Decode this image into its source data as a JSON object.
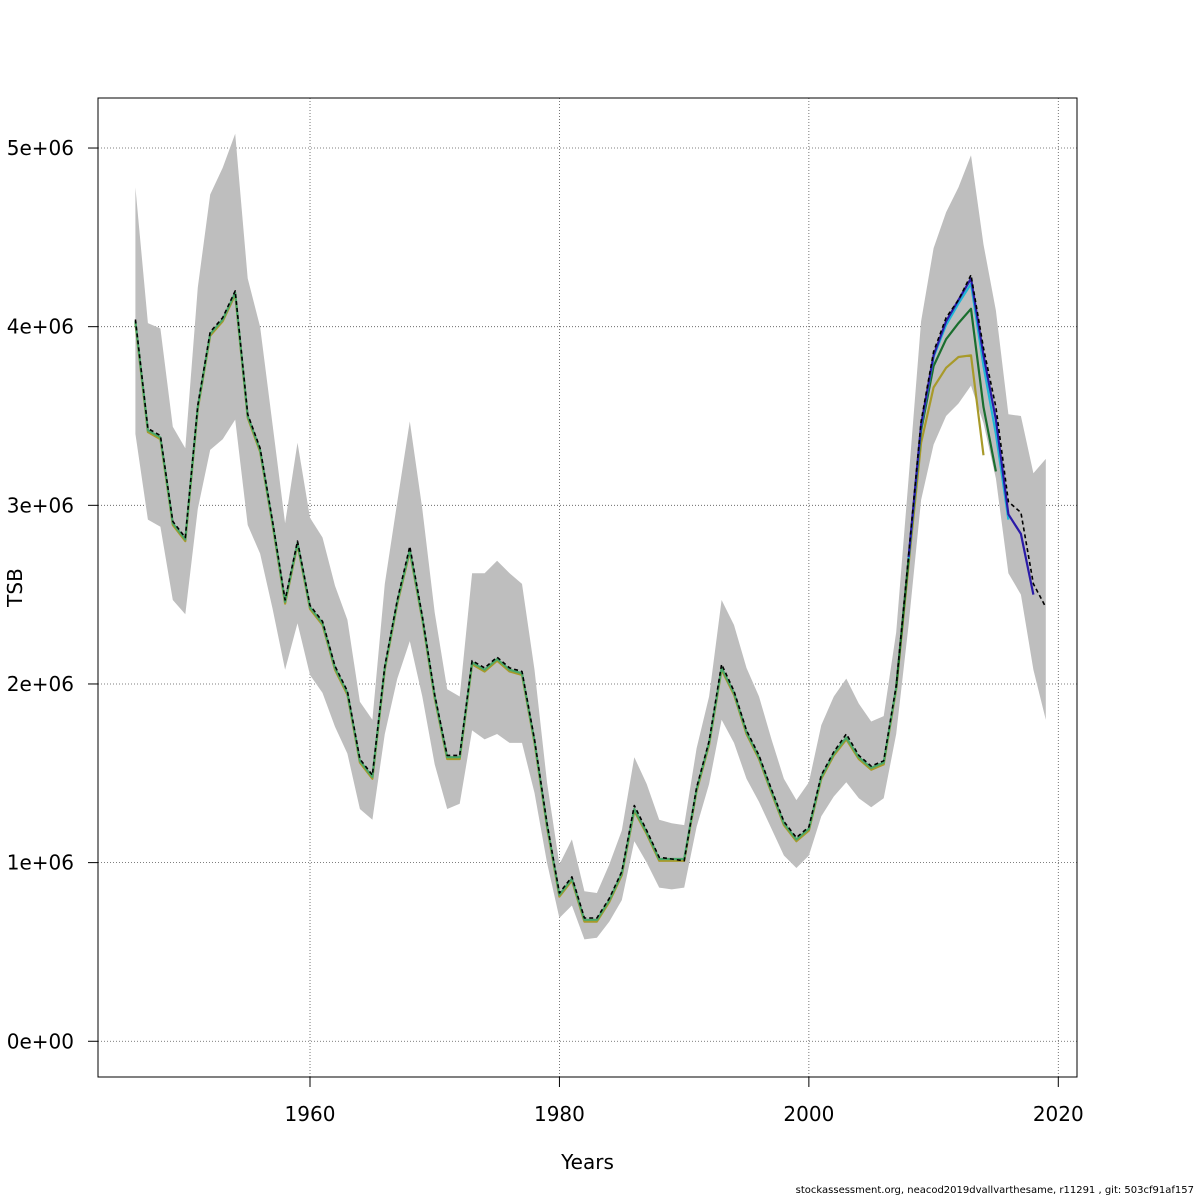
{
  "chart_data": {
    "type": "line",
    "title": "",
    "xlabel": "Years",
    "ylabel": "TSB",
    "xlim": [
      1943,
      2021.5
    ],
    "ylim": [
      -200000,
      5280000
    ],
    "xticks": [
      1960,
      1980,
      2000,
      2020
    ],
    "xtick_labels": [
      "1960",
      "1980",
      "2000",
      "2020"
    ],
    "yticks": [
      0,
      1000000,
      2000000,
      3000000,
      4000000,
      5000000
    ],
    "ytick_labels": [
      "0e+00",
      "1e+06",
      "2e+06",
      "3e+06",
      "4e+06",
      "5e+06"
    ],
    "grid": true,
    "legend": "none",
    "band": {
      "name": "confidence interval",
      "color": "#bebebe",
      "x": [
        1946,
        1947,
        1948,
        1949,
        1950,
        1951,
        1952,
        1953,
        1954,
        1955,
        1956,
        1957,
        1958,
        1959,
        1960,
        1961,
        1962,
        1963,
        1964,
        1965,
        1966,
        1967,
        1968,
        1969,
        1970,
        1971,
        1972,
        1973,
        1974,
        1975,
        1976,
        1977,
        1978,
        1979,
        1980,
        1981,
        1982,
        1983,
        1984,
        1985,
        1986,
        1987,
        1988,
        1989,
        1990,
        1991,
        1992,
        1993,
        1994,
        1995,
        1996,
        1997,
        1998,
        1999,
        2000,
        2001,
        2002,
        2003,
        2004,
        2005,
        2006,
        2007,
        2008,
        2009,
        2010,
        2011,
        2012,
        2013,
        2014,
        2015,
        2016,
        2017,
        2018,
        2019
      ],
      "lower": [
        3400000,
        2920000,
        2880000,
        2470000,
        2390000,
        2980000,
        3310000,
        3370000,
        3480000,
        2890000,
        2730000,
        2420000,
        2080000,
        2340000,
        2050000,
        1950000,
        1760000,
        1610000,
        1300000,
        1240000,
        1720000,
        2030000,
        2240000,
        1930000,
        1550000,
        1300000,
        1330000,
        1740000,
        1690000,
        1720000,
        1670000,
        1670000,
        1390000,
        1000000,
        690000,
        760000,
        570000,
        580000,
        670000,
        790000,
        1120000,
        1000000,
        860000,
        850000,
        860000,
        1200000,
        1440000,
        1800000,
        1670000,
        1470000,
        1340000,
        1190000,
        1040000,
        970000,
        1040000,
        1260000,
        1370000,
        1450000,
        1360000,
        1310000,
        1360000,
        1720000,
        2330000,
        3030000,
        3340000,
        3500000,
        3570000,
        3670000,
        3460000,
        3150000,
        2620000,
        2500000,
        2080000,
        1800000
      ],
      "upper": [
        4780000,
        4020000,
        3990000,
        3440000,
        3320000,
        4220000,
        4740000,
        4890000,
        5080000,
        4270000,
        4000000,
        3450000,
        2900000,
        3350000,
        2930000,
        2820000,
        2550000,
        2360000,
        1900000,
        1800000,
        2560000,
        3020000,
        3470000,
        2980000,
        2400000,
        1970000,
        1930000,
        2620000,
        2620000,
        2690000,
        2620000,
        2560000,
        2080000,
        1450000,
        990000,
        1130000,
        840000,
        830000,
        990000,
        1180000,
        1590000,
        1440000,
        1240000,
        1220000,
        1210000,
        1640000,
        1930000,
        2470000,
        2330000,
        2090000,
        1930000,
        1690000,
        1470000,
        1350000,
        1450000,
        1770000,
        1930000,
        2030000,
        1890000,
        1790000,
        1820000,
        2290000,
        3150000,
        4030000,
        4440000,
        4640000,
        4780000,
        4960000,
        4460000,
        4090000,
        3510000,
        3500000,
        3180000,
        3260000
      ]
    },
    "series": [
      {
        "color": "#000000",
        "dashed": true,
        "x": [
          1946,
          1947,
          1948,
          1949,
          1950,
          1951,
          1952,
          1953,
          1954,
          1955,
          1956,
          1957,
          1958,
          1959,
          1960,
          1961,
          1962,
          1963,
          1964,
          1965,
          1966,
          1967,
          1968,
          1969,
          1970,
          1971,
          1972,
          1973,
          1974,
          1975,
          1976,
          1977,
          1978,
          1979,
          1980,
          1981,
          1982,
          1983,
          1984,
          1985,
          1986,
          1987,
          1988,
          1989,
          1990,
          1991,
          1992,
          1993,
          1994,
          1995,
          1996,
          1997,
          1998,
          1999,
          2000,
          2001,
          2002,
          2003,
          2004,
          2005,
          2006,
          2007,
          2008,
          2009,
          2010,
          2011,
          2012,
          2013,
          2014,
          2015,
          2016,
          2017,
          2018,
          2019
        ],
        "y": [
          4040000,
          3430000,
          3390000,
          2910000,
          2820000,
          3560000,
          3970000,
          4050000,
          4200000,
          3510000,
          3320000,
          2910000,
          2470000,
          2800000,
          2440000,
          2350000,
          2100000,
          1960000,
          1580000,
          1490000,
          2100000,
          2470000,
          2770000,
          2380000,
          1940000,
          1600000,
          1600000,
          2130000,
          2090000,
          2150000,
          2090000,
          2070000,
          1690000,
          1220000,
          830000,
          920000,
          690000,
          690000,
          800000,
          950000,
          1320000,
          1180000,
          1030000,
          1020000,
          1010000,
          1420000,
          1680000,
          2110000,
          1960000,
          1740000,
          1600000,
          1410000,
          1230000,
          1140000,
          1200000,
          1490000,
          1620000,
          1720000,
          1600000,
          1540000,
          1570000,
          1990000,
          2720000,
          3470000,
          3860000,
          4050000,
          4150000,
          4290000,
          3880000,
          3550000,
          3020000,
          2960000,
          2560000,
          2430000
        ]
      },
      {
        "color": "#2a1aa8",
        "x": [
          2008,
          2009,
          2010,
          2011,
          2012,
          2013,
          2014,
          2015,
          2016,
          2017,
          2018
        ],
        "y": [
          2710000,
          3450000,
          3840000,
          4030000,
          4150000,
          4270000,
          3840000,
          3480000,
          2950000,
          2840000,
          2500000
        ]
      },
      {
        "color": "#1fb6d6",
        "x": [
          2008,
          2009,
          2010,
          2011,
          2012,
          2013,
          2014,
          2015,
          2016
        ],
        "y": [
          2700000,
          3440000,
          3830000,
          4010000,
          4130000,
          4240000,
          3780000,
          3400000,
          2920000
        ]
      },
      {
        "color": "#4aa86a",
        "x": [
          1946,
          1947,
          1948,
          1949,
          1950,
          1951,
          1952,
          1953,
          1954,
          1955,
          1956,
          1957,
          1958,
          1959,
          1960,
          1961,
          1962,
          1963,
          1964,
          1965,
          1966,
          1967,
          1968,
          1969,
          1970,
          1971,
          1972,
          1973,
          1974,
          1975,
          1976,
          1977,
          1978,
          1979,
          1980,
          1981,
          1982,
          1983,
          1984,
          1985,
          1986,
          1987,
          1988,
          1989,
          1990,
          1991,
          1992,
          1993,
          1994,
          1995,
          1996,
          1997,
          1998,
          1999,
          2000,
          2001,
          2002,
          2003,
          2004,
          2005,
          2006,
          2007
        ],
        "y": [
          4030000,
          3420000,
          3380000,
          2900000,
          2810000,
          3550000,
          3960000,
          4040000,
          4190000,
          3500000,
          3310000,
          2900000,
          2460000,
          2790000,
          2430000,
          2340000,
          2090000,
          1950000,
          1570000,
          1480000,
          2090000,
          2460000,
          2750000,
          2370000,
          1930000,
          1590000,
          1590000,
          2120000,
          2080000,
          2140000,
          2080000,
          2060000,
          1680000,
          1210000,
          820000,
          910000,
          680000,
          680000,
          790000,
          940000,
          1300000,
          1170000,
          1020000,
          1020000,
          1020000,
          1410000,
          1670000,
          2090000,
          1950000,
          1730000,
          1590000,
          1400000,
          1220000,
          1130000,
          1190000,
          1480000,
          1610000,
          1700000,
          1590000,
          1530000,
          1560000,
          1980000
        ]
      },
      {
        "color": "#1a6e2e",
        "x": [
          2007,
          2008,
          2009,
          2010,
          2011,
          2012,
          2013,
          2014,
          2015
        ],
        "y": [
          1980000,
          2700000,
          3420000,
          3780000,
          3930000,
          4020000,
          4100000,
          3550000,
          3190000
        ]
      },
      {
        "color": "#a89a2a",
        "x": [
          1946,
          1947,
          1948,
          1949,
          1950,
          1951,
          1952,
          1953,
          1954,
          1955,
          1956,
          1957,
          1958,
          1959,
          1960,
          1961,
          1962,
          1963,
          1964,
          1965,
          1966,
          1967,
          1968,
          1969,
          1970,
          1971,
          1972,
          1973,
          1974,
          1975,
          1976,
          1977,
          1978,
          1979,
          1980,
          1981,
          1982,
          1983,
          1984,
          1985,
          1986,
          1987,
          1988,
          1989,
          1990,
          1991,
          1992,
          1993,
          1994,
          1995,
          1996,
          1997,
          1998,
          1999,
          2000,
          2001,
          2002,
          2003,
          2004,
          2005,
          2006,
          2007,
          2008,
          2009,
          2010,
          2011,
          2012,
          2013,
          2014
        ],
        "y": [
          4020000,
          3410000,
          3370000,
          2890000,
          2800000,
          3540000,
          3950000,
          4030000,
          4180000,
          3490000,
          3300000,
          2890000,
          2450000,
          2780000,
          2420000,
          2330000,
          2080000,
          1940000,
          1560000,
          1470000,
          2080000,
          2450000,
          2740000,
          2360000,
          1920000,
          1580000,
          1580000,
          2110000,
          2070000,
          2130000,
          2070000,
          2050000,
          1670000,
          1200000,
          810000,
          900000,
          670000,
          670000,
          780000,
          930000,
          1290000,
          1160000,
          1010000,
          1010000,
          1010000,
          1400000,
          1660000,
          2080000,
          1940000,
          1720000,
          1580000,
          1390000,
          1210000,
          1120000,
          1180000,
          1470000,
          1600000,
          1690000,
          1580000,
          1520000,
          1550000,
          1970000,
          2670000,
          3350000,
          3660000,
          3770000,
          3830000,
          3840000,
          3280000
        ]
      }
    ]
  },
  "footer": {
    "text": "stockassessment.org, neacod2019dvallvarthesame, r11291 , git: 503cf91af157"
  }
}
